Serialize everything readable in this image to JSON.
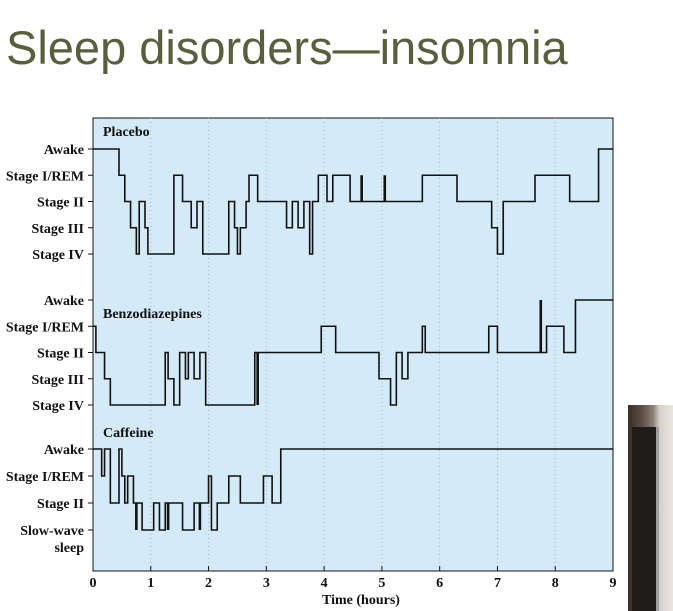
{
  "slide": {
    "title": "Sleep disorders—insomnia"
  },
  "chart_data": {
    "type": "line",
    "subtype": "step",
    "xlabel": "Time (hours)",
    "x_ticks": [
      "0",
      "1",
      "2",
      "3",
      "4",
      "5",
      "6",
      "7",
      "8",
      "9"
    ],
    "xlim": [
      0,
      9
    ],
    "background_color": "#d4eaf7",
    "line_color": "#111111",
    "grid": "vertical-dotted",
    "panels": [
      {
        "name": "Placebo",
        "levels": [
          "Awake",
          "Stage I/REM",
          "Stage II",
          "Stage III",
          "Stage IV"
        ],
        "series": [
          [
            0,
            0
          ],
          [
            0.45,
            1
          ],
          [
            0.55,
            2
          ],
          [
            0.65,
            3
          ],
          [
            0.75,
            4
          ],
          [
            0.8,
            2
          ],
          [
            0.9,
            3
          ],
          [
            0.95,
            4
          ],
          [
            1.4,
            1
          ],
          [
            1.55,
            2
          ],
          [
            1.7,
            3
          ],
          [
            1.8,
            2
          ],
          [
            1.9,
            4
          ],
          [
            2.35,
            2
          ],
          [
            2.45,
            3
          ],
          [
            2.5,
            4
          ],
          [
            2.55,
            3
          ],
          [
            2.65,
            2
          ],
          [
            2.7,
            1
          ],
          [
            2.85,
            2
          ],
          [
            3.35,
            3
          ],
          [
            3.45,
            2
          ],
          [
            3.55,
            3
          ],
          [
            3.65,
            2
          ],
          [
            3.75,
            4
          ],
          [
            3.8,
            2
          ],
          [
            3.9,
            1
          ],
          [
            4.05,
            2
          ],
          [
            4.15,
            1
          ],
          [
            4.45,
            2
          ],
          [
            5.7,
            1
          ],
          [
            6.3,
            2
          ],
          [
            6.9,
            3
          ],
          [
            7.0,
            4
          ],
          [
            7.1,
            2
          ],
          [
            7.35,
            2
          ],
          [
            7.65,
            1
          ],
          [
            8.25,
            2
          ],
          [
            8.75,
            0
          ]
        ],
        "spikes": [
          [
            4.65,
            1
          ],
          [
            5.05,
            1
          ]
        ]
      },
      {
        "name": "Benzodiazepines",
        "levels": [
          "Awake",
          "Stage I/REM",
          "Stage II",
          "Stage III",
          "Stage IV"
        ],
        "series": [
          [
            0,
            1
          ],
          [
            0.05,
            2
          ],
          [
            0.2,
            3
          ],
          [
            0.3,
            4
          ],
          [
            1.25,
            2
          ],
          [
            1.3,
            3
          ],
          [
            1.4,
            4
          ],
          [
            1.5,
            2
          ],
          [
            1.6,
            3
          ],
          [
            1.65,
            2
          ],
          [
            1.75,
            3
          ],
          [
            1.85,
            2
          ],
          [
            1.95,
            4
          ],
          [
            2.8,
            2
          ],
          [
            3.1,
            2
          ],
          [
            3.95,
            1
          ],
          [
            4.2,
            2
          ],
          [
            4.95,
            3
          ],
          [
            5.15,
            4
          ],
          [
            5.25,
            2
          ],
          [
            5.35,
            3
          ],
          [
            5.45,
            2
          ],
          [
            5.5,
            2
          ],
          [
            5.7,
            1
          ],
          [
            5.75,
            2
          ],
          [
            6.85,
            1
          ],
          [
            7.0,
            2
          ],
          [
            7.85,
            1
          ],
          [
            8.15,
            2
          ],
          [
            8.35,
            0
          ]
        ],
        "spikes": [
          [
            2.85,
            4
          ],
          [
            5.15,
            4
          ],
          [
            7.75,
            0
          ]
        ]
      },
      {
        "name": "Caffeine",
        "levels": [
          "Awake",
          "Stage I/REM",
          "Stage II",
          "Slow-wave\nsleep"
        ],
        "series": [
          [
            0,
            0
          ],
          [
            0.15,
            1
          ],
          [
            0.2,
            0
          ],
          [
            0.3,
            2
          ],
          [
            0.45,
            0
          ],
          [
            0.5,
            1
          ],
          [
            0.55,
            2
          ],
          [
            0.6,
            1
          ],
          [
            0.7,
            2
          ],
          [
            0.85,
            3
          ],
          [
            1.05,
            2
          ],
          [
            1.15,
            3
          ],
          [
            1.25,
            2
          ],
          [
            1.55,
            3
          ],
          [
            1.75,
            2
          ],
          [
            1.85,
            2
          ],
          [
            2.0,
            1
          ],
          [
            2.05,
            3
          ],
          [
            2.15,
            2
          ],
          [
            2.35,
            1
          ],
          [
            2.55,
            2
          ],
          [
            2.95,
            1
          ],
          [
            3.1,
            2
          ],
          [
            3.25,
            0
          ],
          [
            9,
            0
          ]
        ],
        "spikes": [
          [
            0.75,
            3
          ],
          [
            1.3,
            3
          ],
          [
            1.85,
            3
          ],
          [
            3.2,
            2
          ]
        ]
      }
    ]
  }
}
